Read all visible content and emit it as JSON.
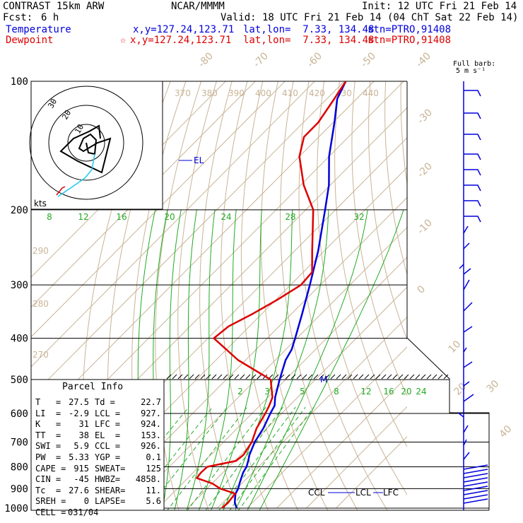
{
  "header": {
    "model": "CONTRAST 15km ARW",
    "center": "NCAR/MMMM",
    "init": "Init: 12 UTC Fri 21 Feb 14",
    "fcst_label": "Fcst:",
    "fcst_value": "6 h",
    "valid": "Valid: 18 UTC Fri 21 Feb 14 (04 ChT Sat 22 Feb 14)",
    "temperature_label": "Temperature",
    "temperature_xy": "x,y=127.24,123.71",
    "temperature_latlon": "lat,lon=  7.33, 134.48",
    "temperature_stn": "stn=PTRO,91408",
    "dewpoint_label": "Dewpoint",
    "dewpoint_xy": "x,y=127.24,123.71",
    "dewpoint_latlon": "lat,lon=  7.33, 134.48",
    "dewpoint_stn": "stn=PTRO,91408",
    "barb_title_1": "Full barb:",
    "barb_title_2": "5 m s⁻¹",
    "star_symbol": "☆"
  },
  "colors": {
    "temperature": "#0000dd",
    "dewpoint": "#dd0000",
    "isotherm": "#c8b496",
    "dry_adiabat": "#c8b496",
    "moist_adiabat": "#22aa22",
    "mixing_ratio": "#22aa22",
    "hodograph": "#20c8e8",
    "isobar": "#000000"
  },
  "parcel_info": {
    "title": "Parcel Info",
    "rows": [
      [
        "T   =",
        "27.5",
        "Td =",
        "22.7"
      ],
      [
        "LI  =",
        "-2.9",
        "LCL =",
        "927."
      ],
      [
        "K   =",
        "31",
        "LFC =",
        "924."
      ],
      [
        "TT  =",
        "38",
        "EL  =",
        "153."
      ],
      [
        "SWI =",
        "5.9",
        "CCL =",
        "926."
      ],
      [
        "PW  =",
        "5.33",
        "YGP =",
        "0.1"
      ],
      [
        "CAPE =",
        "915",
        "SWEAT=",
        "125"
      ],
      [
        "CIN =",
        "-45",
        "HWBZ=",
        "4858."
      ],
      [
        "Tc  =",
        "27.6",
        "SHEAR=",
        "11."
      ],
      [
        "SREH =",
        "0",
        "LAPSE=",
        "5.6"
      ],
      [
        "CELL =",
        "031/04",
        "",
        ""
      ]
    ]
  },
  "chart_data": {
    "type": "line",
    "chart_kind": "skew-T log-p sounding",
    "y_axis": {
      "label": "pressure (hPa)",
      "scale": "log",
      "range": [
        1000,
        100
      ],
      "ticks": [
        100,
        200,
        300,
        400,
        500,
        600,
        700,
        800,
        900,
        1000
      ]
    },
    "isotherm_labels": [
      -80,
      -70,
      -60,
      -50,
      -40,
      -30,
      -20,
      -10,
      0,
      10,
      20,
      30,
      40
    ],
    "potential_temp_labels_top": [
      370,
      380,
      390,
      400,
      410,
      420,
      430,
      440
    ],
    "potential_temp_labels_left": [
      290,
      280,
      270
    ],
    "mixing_ratio_labels": [
      2,
      3,
      5,
      8,
      12,
      16,
      20,
      24
    ],
    "moist_adiabat_labels": [
      8,
      12,
      16,
      20,
      24,
      28,
      32
    ],
    "annotations": {
      "el": "EL",
      "m": "M",
      "ccl": "CCL",
      "lcl": "LCL",
      "lfc": "LFC",
      "kts": "kts"
    },
    "series": [
      {
        "name": "Temperature",
        "points": [
          [
            1000,
            26.5
          ],
          [
            970,
            24.0
          ],
          [
            950,
            22.8
          ],
          [
            925,
            21.3
          ],
          [
            900,
            20.5
          ],
          [
            875,
            19.2
          ],
          [
            850,
            18.0
          ],
          [
            825,
            16.8
          ],
          [
            800,
            16.0
          ],
          [
            775,
            14.6
          ],
          [
            750,
            13.0
          ],
          [
            700,
            10.5
          ],
          [
            650,
            8.8
          ],
          [
            600,
            6.2
          ],
          [
            575,
            5.0
          ],
          [
            550,
            2.4
          ],
          [
            500,
            -2.0
          ],
          [
            450,
            -6.5
          ],
          [
            425,
            -8.0
          ],
          [
            400,
            -10.6
          ],
          [
            350,
            -16.5
          ],
          [
            300,
            -23.5
          ],
          [
            250,
            -32.0
          ],
          [
            200,
            -43.5
          ],
          [
            175,
            -50.5
          ],
          [
            150,
            -60.0
          ],
          [
            125,
            -69.5
          ],
          [
            110,
            -76.5
          ],
          [
            100,
            -79.5
          ]
        ]
      },
      {
        "name": "Dewpoint",
        "points": [
          [
            1000,
            21.5
          ],
          [
            970,
            21.8
          ],
          [
            950,
            21.5
          ],
          [
            925,
            21.2
          ],
          [
            900,
            14.5
          ],
          [
            875,
            10.0
          ],
          [
            850,
            3.0
          ],
          [
            825,
            2.6
          ],
          [
            800,
            2.8
          ],
          [
            775,
            10.5
          ],
          [
            750,
            11.0
          ],
          [
            700,
            9.5
          ],
          [
            650,
            6.5
          ],
          [
            600,
            4.5
          ],
          [
            575,
            3.2
          ],
          [
            550,
            1.5
          ],
          [
            500,
            -5.0
          ],
          [
            450,
            -22.5
          ],
          [
            400,
            -38.0
          ],
          [
            375,
            -37.0
          ],
          [
            350,
            -33.0
          ],
          [
            325,
            -29.5
          ],
          [
            300,
            -26.5
          ],
          [
            280,
            -27.0
          ],
          [
            250,
            -34.0
          ],
          [
            200,
            -47.5
          ],
          [
            175,
            -59.0
          ],
          [
            150,
            -70.0
          ],
          [
            135,
            -75.0
          ],
          [
            125,
            -75.0
          ],
          [
            110,
            -77.5
          ],
          [
            100,
            -79.5
          ]
        ]
      }
    ],
    "hodograph_rings_kts": [
      10,
      20,
      30
    ]
  }
}
